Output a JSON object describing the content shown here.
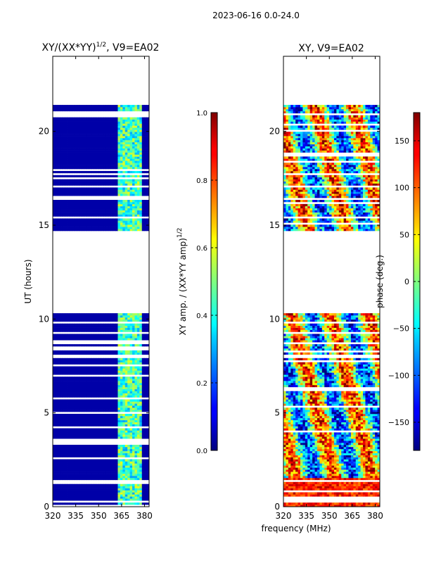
{
  "figure": {
    "suptitle": "2023-06-16 0.0-24.0",
    "xlabel": "frequency (MHz)"
  },
  "chart_data": [
    {
      "type": "heatmap",
      "title_main": "XY/(XX*YY)",
      "title_sup": "1/2",
      "title_tail": ", V9=EA02",
      "xlabel": "",
      "ylabel": "UT (hours)",
      "xlim": [
        320,
        383
      ],
      "ylim": [
        0,
        24
      ],
      "xticks": [
        320,
        335,
        350,
        365,
        380
      ],
      "yticks": [
        0,
        5,
        10,
        15,
        20
      ],
      "data_blocks_hours": [
        [
          0,
          7.9
        ],
        [
          8.0,
          10.2
        ],
        [
          14.7,
          21.4
        ]
      ],
      "colorbar": {
        "label_main": "XY amp. / (XX*YY amp)",
        "label_sup": "1/2",
        "range": [
          0.0,
          1.0
        ],
        "ticks": [
          "0.0",
          "0.2",
          "0.4",
          "0.6",
          "0.8",
          "1.0"
        ],
        "tick_values": [
          0.0,
          0.2,
          0.4,
          0.6,
          0.8,
          1.0
        ]
      }
    },
    {
      "type": "heatmap",
      "title_main": "XY, V9=EA02",
      "xlabel": "",
      "ylabel": "",
      "xlim": [
        320,
        383
      ],
      "ylim": [
        0,
        24
      ],
      "xticks": [
        320,
        335,
        350,
        365,
        380
      ],
      "yticks": [
        0,
        5,
        10,
        15,
        20
      ],
      "data_blocks_hours": [
        [
          0,
          7.9
        ],
        [
          8.0,
          10.2
        ],
        [
          14.7,
          21.4
        ]
      ],
      "colorbar": {
        "label_main": "phase (deg.)",
        "range": [
          -180,
          180
        ],
        "ticks": [
          "−150",
          "−100",
          "−50",
          "0",
          "50",
          "100",
          "150"
        ],
        "tick_values": [
          -150,
          -100,
          -50,
          0,
          50,
          100,
          150
        ]
      }
    }
  ]
}
